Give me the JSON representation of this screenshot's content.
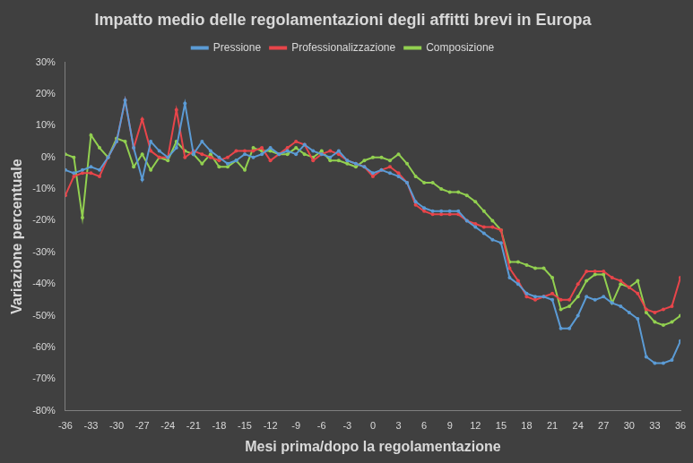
{
  "chart_data": {
    "type": "line",
    "title": "Impatto medio delle regolamentazioni degli affitti brevi in Europa",
    "x_label": "Mesi prima/dopo la regolamentazione",
    "y_label": "Variazione percentuale",
    "x": [
      -36,
      -35,
      -34,
      -33,
      -32,
      -31,
      -30,
      -29,
      -28,
      -27,
      -26,
      -25,
      -24,
      -23,
      -22,
      -21,
      -20,
      -19,
      -18,
      -17,
      -16,
      -15,
      -14,
      -13,
      -12,
      -11,
      -10,
      -9,
      -8,
      -7,
      -6,
      -5,
      -4,
      -3,
      -2,
      -1,
      0,
      1,
      2,
      3,
      4,
      5,
      6,
      7,
      8,
      9,
      10,
      11,
      12,
      13,
      14,
      15,
      16,
      17,
      18,
      19,
      20,
      21,
      22,
      23,
      24,
      25,
      26,
      27,
      28,
      29,
      30,
      31,
      32,
      33,
      34,
      35,
      36
    ],
    "series": [
      {
        "name": "Pressione",
        "color": "#5b9bd5",
        "marker": "circle",
        "line_style": "solid",
        "values": [
          -4,
          -5,
          -4,
          -3,
          -4,
          0,
          5,
          18,
          3,
          -7,
          5,
          2,
          0,
          3,
          17,
          1,
          5,
          2,
          0,
          -2,
          -1,
          1,
          0,
          1,
          3,
          1,
          2,
          1,
          4,
          2,
          1,
          0,
          2,
          -1,
          -2,
          -3,
          -5,
          -4,
          -5,
          -6,
          -8,
          -14,
          -16,
          -17,
          -17,
          -17,
          -17,
          -20,
          -22,
          -24,
          -26,
          -27,
          -38,
          -40,
          -43,
          -44,
          -44,
          -45,
          -54,
          -54,
          -50,
          -44,
          -45,
          -44,
          -46,
          -47,
          -49,
          -51,
          -63,
          -65,
          -65,
          -64,
          -58
        ]
      },
      {
        "name": "Professionalizzazione",
        "color": "#e8454a",
        "marker": "circle",
        "line_style": "solid",
        "values": [
          -12,
          -6,
          -5,
          -5,
          -6,
          0,
          5,
          18,
          3,
          12,
          2,
          0,
          0,
          15,
          0,
          2,
          1,
          0,
          -1,
          0,
          2,
          2,
          2,
          3,
          -1,
          1,
          3,
          5,
          4,
          -1,
          1,
          2,
          1,
          -1,
          -2,
          -3,
          -6,
          -4,
          -3,
          -5,
          -8,
          -15,
          -17,
          -18,
          -18,
          -18,
          -18,
          -20,
          -21,
          -22,
          -22,
          -23,
          -35,
          -39,
          -44,
          -45,
          -44,
          -43,
          -45,
          -45,
          -40,
          -36,
          -36,
          -36,
          -38,
          -39,
          -41,
          -43,
          -48,
          -49,
          -48,
          -47,
          -38
        ]
      },
      {
        "name": "Composizione",
        "color": "#92d050",
        "marker": "circle",
        "line_style": "solid",
        "values": [
          1,
          0,
          -19,
          7,
          3,
          0,
          6,
          5,
          -3,
          1,
          -4,
          0,
          -1,
          5,
          2,
          1,
          -2,
          1,
          -3,
          -3,
          -1,
          -4,
          3,
          2,
          2,
          1,
          1,
          3,
          1,
          0,
          2,
          -1,
          -1,
          -2,
          -3,
          -1,
          0,
          0,
          -1,
          1,
          -2,
          -6,
          -8,
          -8,
          -10,
          -11,
          -11,
          -12,
          -14,
          -17,
          -20,
          -23,
          -33,
          -33,
          -34,
          -35,
          -35,
          -38,
          -48,
          -47,
          -44,
          -39,
          -37,
          -37,
          -46,
          -40,
          -41,
          -39,
          -49,
          -52,
          -53,
          -52,
          -50
        ]
      }
    ],
    "xlim": [
      -36,
      36
    ],
    "xticks": [
      -36,
      -33,
      -30,
      -27,
      -24,
      -21,
      -18,
      -15,
      -12,
      -9,
      -6,
      -3,
      0,
      3,
      6,
      9,
      12,
      15,
      18,
      21,
      24,
      27,
      30,
      33,
      36
    ],
    "ylim": [
      -80,
      30
    ],
    "yticks": [
      {
        "value": -80,
        "label": "-80%"
      },
      {
        "value": -70,
        "label": "-70%"
      },
      {
        "value": -60,
        "label": "-60%"
      },
      {
        "value": -50,
        "label": "-50%"
      },
      {
        "value": -40,
        "label": "-40%"
      },
      {
        "value": -30,
        "label": "-30%"
      },
      {
        "value": -20,
        "label": "-20%"
      },
      {
        "value": -10,
        "label": "-10%"
      },
      {
        "value": 0,
        "label": "0%"
      },
      {
        "value": 10,
        "label": "10%"
      },
      {
        "value": 20,
        "label": "20%"
      },
      {
        "value": 30,
        "label": "30%"
      }
    ],
    "grid": false,
    "legend": "top"
  }
}
